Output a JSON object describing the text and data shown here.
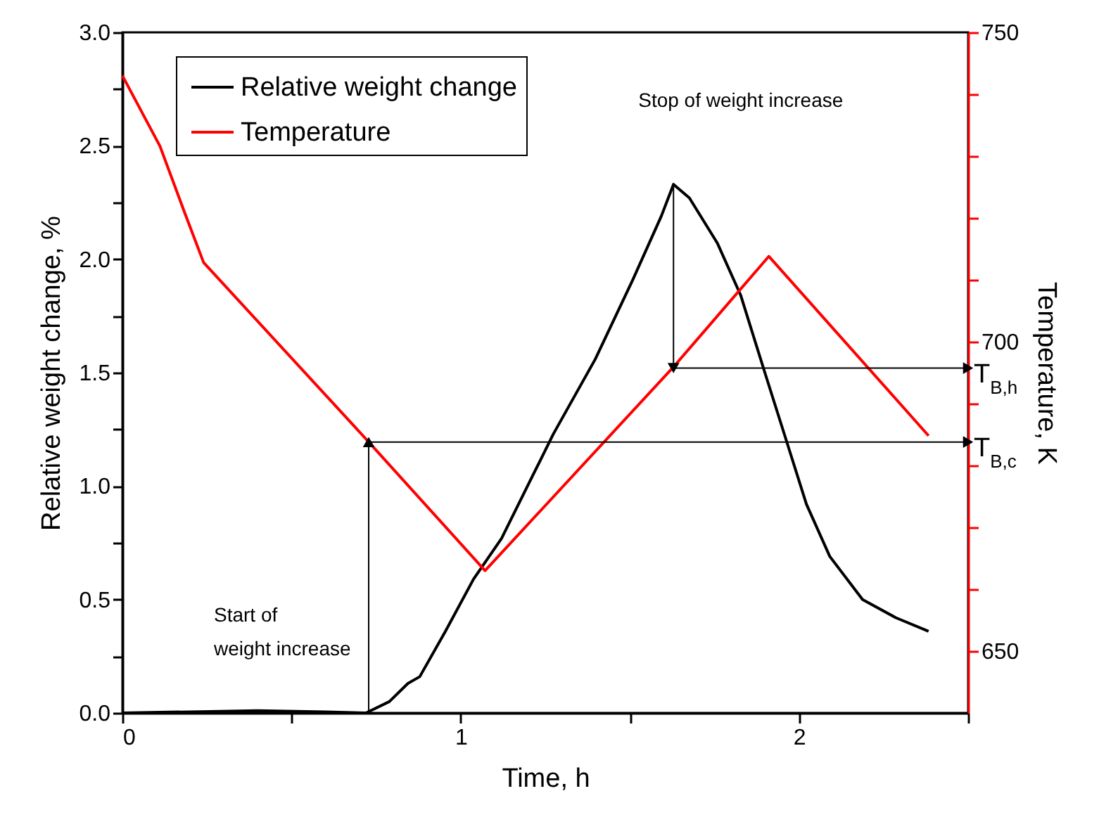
{
  "chart_data": {
    "type": "line",
    "xlabel": "Time, h",
    "ylabel": "Relative weight change, %",
    "y2label": "Temperature, K",
    "legend": "top left",
    "xlim": [
      0,
      2.5
    ],
    "xticks": [
      0,
      {
        "value": 0.5,
        "label": null
      },
      1,
      {
        "value": 1.5,
        "label": null
      },
      2,
      {
        "value": 2.5,
        "label": null
      }
    ],
    "ylim": [
      0,
      3
    ],
    "yticks": [
      {
        "value": 0,
        "label": "0.0"
      },
      {
        "value": 0.25,
        "label": null
      },
      {
        "value": 0.5,
        "label": "0.5"
      },
      {
        "value": 0.75,
        "label": null
      },
      {
        "value": 1,
        "label": "1.0"
      },
      {
        "value": 1.25,
        "label": null
      },
      {
        "value": 1.5,
        "label": "1.5"
      },
      {
        "value": 1.75,
        "label": null
      },
      {
        "value": 2,
        "label": "2.0"
      },
      {
        "value": 2.25,
        "label": null
      },
      {
        "value": 2.5,
        "label": "2.5"
      },
      {
        "value": 2.75,
        "label": null
      },
      {
        "value": 3,
        "label": "3.0"
      }
    ],
    "y2lim": [
      640,
      750
    ],
    "y2ticks": [
      650,
      {
        "value": 660,
        "label": null
      },
      {
        "value": 670,
        "label": null
      },
      {
        "value": 680,
        "label": null
      },
      {
        "value": 690,
        "label": null
      },
      700,
      {
        "value": 710,
        "label": null
      },
      {
        "value": 720,
        "label": null
      },
      {
        "value": 730,
        "label": null
      },
      {
        "value": 740,
        "label": null
      },
      750
    ],
    "series": [
      {
        "name": "Relative weight change",
        "color": "#000000",
        "x": [
          0,
          0.2,
          0.4,
          0.6,
          0.72,
          0.789,
          0.844,
          0.879,
          0.955,
          1.038,
          1.121,
          1.274,
          1.398,
          1.509,
          1.593,
          1.629,
          1.676,
          1.759,
          1.828,
          1.897,
          1.967,
          2.022,
          2.091,
          2.188,
          2.286,
          2.383
        ],
        "values": [
          0,
          0.005,
          0.01,
          0.005,
          0,
          0.05,
          0.13,
          0.16,
          0.36,
          0.59,
          0.77,
          1.23,
          1.56,
          1.91,
          2.19,
          2.33,
          2.27,
          2.07,
          1.84,
          1.51,
          1.18,
          0.92,
          0.69,
          0.5,
          0.42,
          0.36
        ]
      },
      {
        "name": "Temperature",
        "color": "#ff0000",
        "axis": "y2",
        "x": [
          0,
          0.111,
          0.183,
          0.24,
          0.728,
          1.072,
          1.627,
          1.911,
          2.383
        ],
        "values": [
          743,
          731.6,
          721,
          712.8,
          683.8,
          663,
          695.8,
          713.8,
          684.8
        ]
      }
    ],
    "annotations": [
      "Start of\nweight increase",
      "Stop of weight increase",
      {
        "text": "T$_{B,c}$",
        "x": 0.728,
        "y": 1.194
      },
      {
        "text": "T$_{B,h}$",
        "x": 1.629,
        "y": 1.52
      }
    ]
  }
}
